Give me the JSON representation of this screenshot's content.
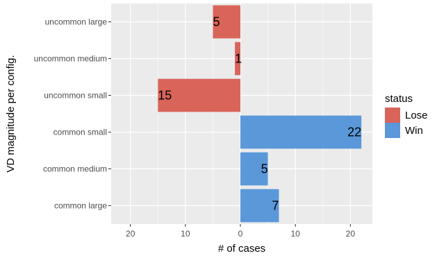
{
  "chart_data": {
    "type": "bar",
    "orientation": "horizontal",
    "categories": [
      "uncommon large",
      "uncommon medium",
      "uncommon small",
      "common small",
      "common medium",
      "common large"
    ],
    "values": [
      -5,
      -1,
      -15,
      22,
      5,
      7
    ],
    "value_labels": [
      "5",
      "1",
      "15",
      "22",
      "5",
      "7"
    ],
    "status": [
      "Lose",
      "Lose",
      "Lose",
      "Win",
      "Win",
      "Win"
    ],
    "xlabel": "# of cases",
    "ylabel": "VD magnitude per config.",
    "xlim": [
      -23.5,
      24
    ],
    "x_ticks": [
      -20,
      -10,
      0,
      10,
      20
    ],
    "x_tick_labels": [
      "20",
      "10",
      "0",
      "10",
      "20"
    ],
    "grid": true,
    "legend": {
      "title": "status",
      "placement": "right",
      "entries": [
        {
          "name": "Lose",
          "color": "#d9645a"
        },
        {
          "name": "Win",
          "color": "#5a98d9"
        }
      ]
    },
    "colors": {
      "panel_bg": "#ebebeb",
      "grid": "#ffffff"
    }
  }
}
